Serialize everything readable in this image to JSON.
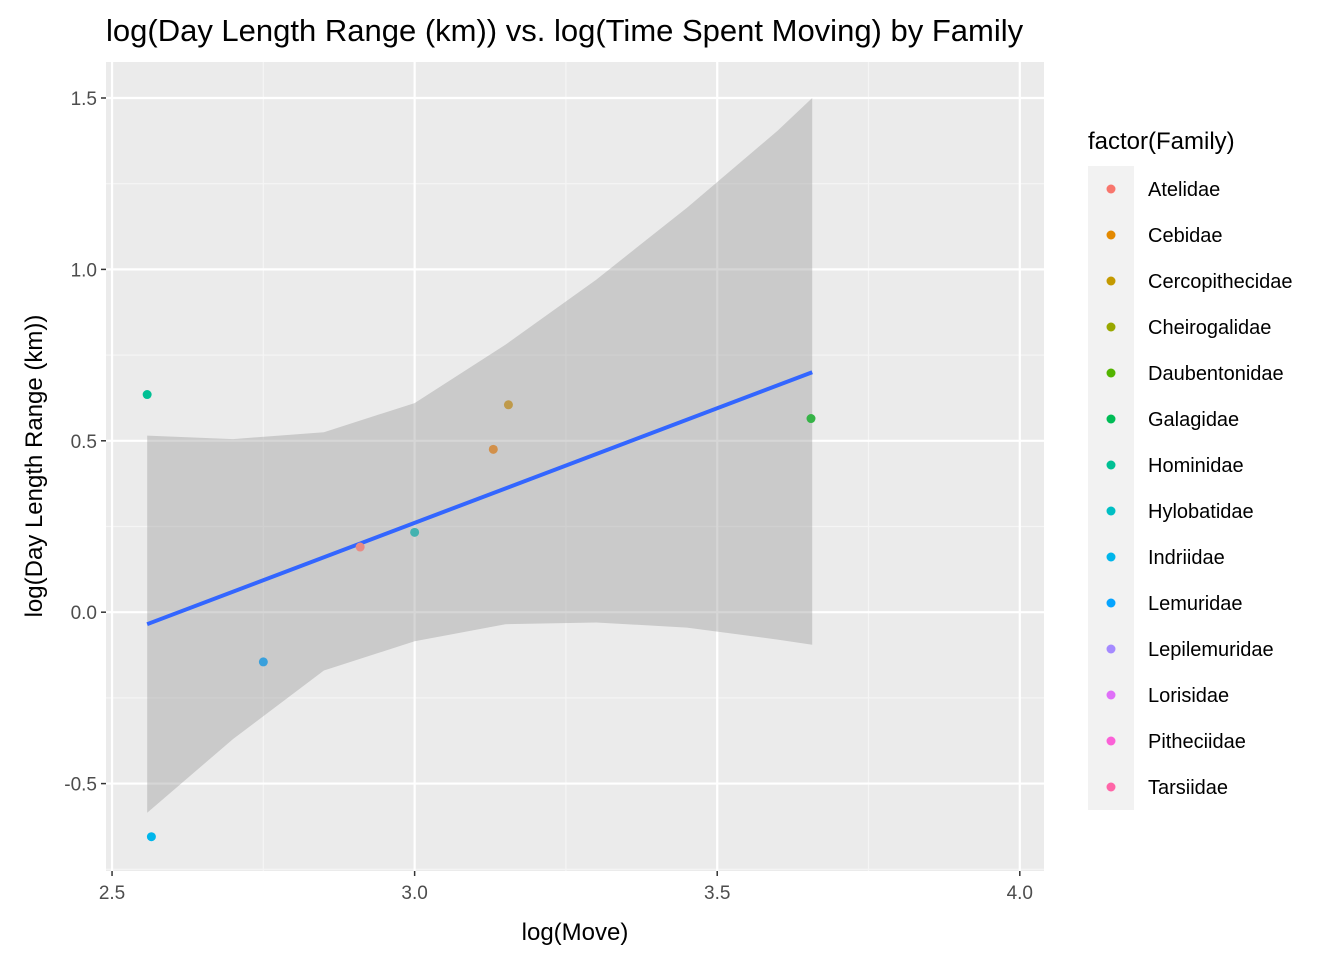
{
  "chart_data": {
    "type": "scatter",
    "title": "log(Day Length Range (km)) vs. log(Time Spent Moving) by Family",
    "xlabel": "log(Move)",
    "ylabel": "log(Day Length Range (km))",
    "xlim": [
      2.49,
      4.04
    ],
    "ylim": [
      -0.755,
      1.605
    ],
    "x_ticks": [
      2.5,
      3.0,
      3.5,
      4.0
    ],
    "x_tick_labels": [
      "2.5",
      "3.0",
      "3.5",
      "4.0"
    ],
    "y_ticks": [
      -0.5,
      0.0,
      0.5,
      1.0,
      1.5
    ],
    "y_tick_labels": [
      "-0.5",
      "0.0",
      "0.5",
      "1.0",
      "1.5"
    ],
    "grid": true,
    "legend": {
      "title": "factor(Family)",
      "placement": "right",
      "entries": [
        {
          "label": "Atelidae",
          "color": "#F8766D"
        },
        {
          "label": "Cebidae",
          "color": "#E38900"
        },
        {
          "label": "Cercopithecidae",
          "color": "#C49A00"
        },
        {
          "label": "Cheirogalidae",
          "color": "#99A800"
        },
        {
          "label": "Daubentonidae",
          "color": "#53B400"
        },
        {
          "label": "Galagidae",
          "color": "#00BC56"
        },
        {
          "label": "Hominidae",
          "color": "#00C094"
        },
        {
          "label": "Hylobatidae",
          "color": "#00BFC4"
        },
        {
          "label": "Indriidae",
          "color": "#00B6EB"
        },
        {
          "label": "Lemuridae",
          "color": "#06A4FF"
        },
        {
          "label": "Lepilemuridae",
          "color": "#A58AFF"
        },
        {
          "label": "Lorisidae",
          "color": "#DF70F8"
        },
        {
          "label": "Pitheciidae",
          "color": "#FB61D7"
        },
        {
          "label": "Tarsiidae",
          "color": "#FF66A8"
        }
      ]
    },
    "points": [
      {
        "x": 2.558,
        "y": 0.635,
        "color": "#00C094"
      },
      {
        "x": 2.565,
        "y": -0.655,
        "color": "#00B6EB"
      },
      {
        "x": 2.75,
        "y": -0.145,
        "color": "#39A0DC"
      },
      {
        "x": 2.91,
        "y": 0.19,
        "color": "#E88A84"
      },
      {
        "x": 3.0,
        "y": 0.233,
        "color": "#43B2B0"
      },
      {
        "x": 3.13,
        "y": 0.475,
        "color": "#D2904A"
      },
      {
        "x": 3.155,
        "y": 0.605,
        "color": "#BF9A4A"
      },
      {
        "x": 3.655,
        "y": 0.565,
        "color": "#36B347"
      }
    ],
    "fit_line": {
      "x": [
        2.558,
        3.657
      ],
      "y": [
        -0.035,
        0.7
      ],
      "color": "#3366FF"
    },
    "confidence_band": {
      "color": "#999999",
      "x": [
        2.558,
        2.7,
        2.85,
        3.0,
        3.15,
        3.3,
        3.45,
        3.6,
        3.657
      ],
      "upper": [
        0.515,
        0.505,
        0.525,
        0.61,
        0.78,
        0.97,
        1.18,
        1.405,
        1.5
      ],
      "lower": [
        -0.585,
        -0.37,
        -0.17,
        -0.085,
        -0.035,
        -0.03,
        -0.045,
        -0.08,
        -0.095
      ]
    }
  }
}
